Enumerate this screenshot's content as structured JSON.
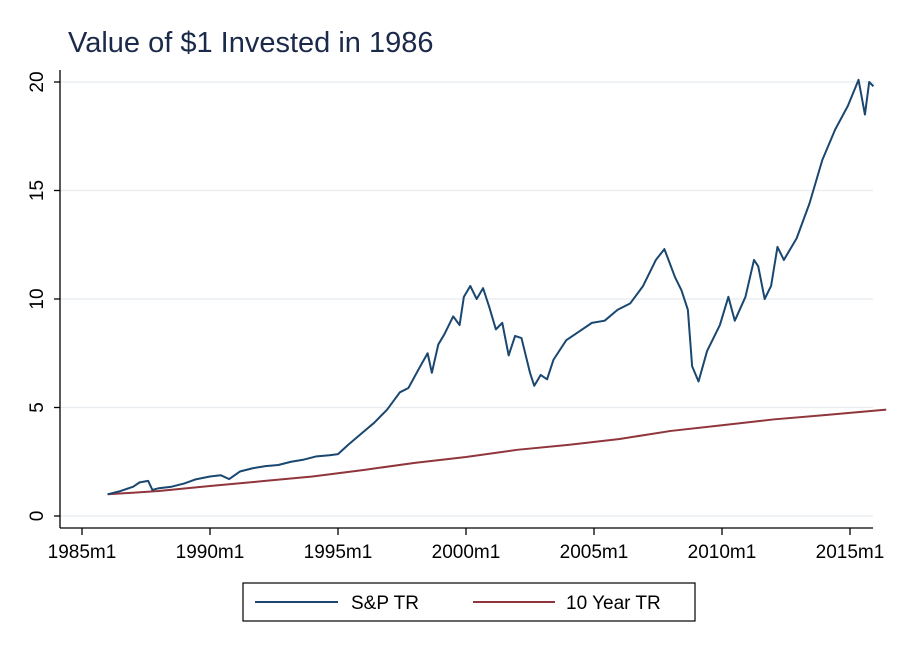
{
  "chart_data": {
    "type": "line",
    "title": "Value of $1 Invested in 1986",
    "xlabel": "",
    "ylabel": "",
    "xlim": [
      "1985m1",
      "2016m12"
    ],
    "ylim": [
      0,
      20
    ],
    "x_ticks": [
      "1985m1",
      "1990m1",
      "1995m1",
      "2000m1",
      "2005m1",
      "2010m1",
      "2015m1"
    ],
    "y_ticks": [
      0,
      5,
      10,
      15,
      20
    ],
    "grid": true,
    "legend_position": "bottom",
    "series": [
      {
        "name": "S&P TR",
        "color": "#1a476f",
        "points": [
          [
            "1986m1",
            1.0
          ],
          [
            "1986m7",
            1.15
          ],
          [
            "1987m1",
            1.35
          ],
          [
            "1987m4",
            1.55
          ],
          [
            "1987m8",
            1.62
          ],
          [
            "1987m10",
            1.2
          ],
          [
            "1988m1",
            1.28
          ],
          [
            "1988m7",
            1.35
          ],
          [
            "1989m1",
            1.5
          ],
          [
            "1989m6",
            1.68
          ],
          [
            "1990m1",
            1.82
          ],
          [
            "1990m6",
            1.88
          ],
          [
            "1990m10",
            1.7
          ],
          [
            "1991m3",
            2.05
          ],
          [
            "1991m9",
            2.2
          ],
          [
            "1992m3",
            2.3
          ],
          [
            "1992m9",
            2.35
          ],
          [
            "1993m3",
            2.5
          ],
          [
            "1993m9",
            2.6
          ],
          [
            "1994m3",
            2.75
          ],
          [
            "1994m9",
            2.8
          ],
          [
            "1995m1",
            2.85
          ],
          [
            "1995m6",
            3.3
          ],
          [
            "1995m12",
            3.8
          ],
          [
            "1996m6",
            4.3
          ],
          [
            "1996m12",
            4.9
          ],
          [
            "1997m6",
            5.7
          ],
          [
            "1997m10",
            5.9
          ],
          [
            "1998m3",
            6.8
          ],
          [
            "1998m7",
            7.5
          ],
          [
            "1998m9",
            6.6
          ],
          [
            "1998m12",
            7.9
          ],
          [
            "1999m3",
            8.4
          ],
          [
            "1999m7",
            9.2
          ],
          [
            "1999m10",
            8.8
          ],
          [
            "1999m12",
            10.1
          ],
          [
            "2000m3",
            10.6
          ],
          [
            "2000m6",
            10.0
          ],
          [
            "2000m9",
            10.5
          ],
          [
            "2000m12",
            9.6
          ],
          [
            "2001m3",
            8.6
          ],
          [
            "2001m6",
            8.9
          ],
          [
            "2001m9",
            7.4
          ],
          [
            "2001m12",
            8.3
          ],
          [
            "2002m3",
            8.2
          ],
          [
            "2002m7",
            6.6
          ],
          [
            "2002m9",
            6.0
          ],
          [
            "2002m12",
            6.5
          ],
          [
            "2003m3",
            6.3
          ],
          [
            "2003m6",
            7.2
          ],
          [
            "2003m12",
            8.1
          ],
          [
            "2004m6",
            8.5
          ],
          [
            "2004m12",
            8.9
          ],
          [
            "2005m6",
            9.0
          ],
          [
            "2005m12",
            9.5
          ],
          [
            "2006m6",
            9.8
          ],
          [
            "2006m12",
            10.6
          ],
          [
            "2007m6",
            11.8
          ],
          [
            "2007m10",
            12.3
          ],
          [
            "2008m3",
            11.0
          ],
          [
            "2008m6",
            10.4
          ],
          [
            "2008m9",
            9.5
          ],
          [
            "2008m11",
            6.9
          ],
          [
            "2009m2",
            6.2
          ],
          [
            "2009m6",
            7.6
          ],
          [
            "2009m12",
            8.8
          ],
          [
            "2010m4",
            10.1
          ],
          [
            "2010m7",
            9.0
          ],
          [
            "2010m12",
            10.1
          ],
          [
            "2011m4",
            11.8
          ],
          [
            "2011m6",
            11.5
          ],
          [
            "2011m9",
            10.0
          ],
          [
            "2011m12",
            10.6
          ],
          [
            "2012m3",
            12.4
          ],
          [
            "2012m6",
            11.8
          ],
          [
            "2012m12",
            12.8
          ],
          [
            "2013m6",
            14.4
          ],
          [
            "2013m12",
            16.4
          ],
          [
            "2014m6",
            17.8
          ],
          [
            "2014m12",
            18.9
          ],
          [
            "2015m5",
            20.1
          ],
          [
            "2015m8",
            18.5
          ],
          [
            "2015m10",
            20.0
          ],
          [
            "2015m12",
            19.8
          ]
        ]
      },
      {
        "name": "10 Year TR",
        "color": "#90353b",
        "points": [
          [
            "1986m1",
            1.0
          ],
          [
            "1988m1",
            1.15
          ],
          [
            "1990m1",
            1.38
          ],
          [
            "1992m1",
            1.6
          ],
          [
            "1994m1",
            1.82
          ],
          [
            "1996m1",
            2.12
          ],
          [
            "1998m1",
            2.45
          ],
          [
            "2000m1",
            2.72
          ],
          [
            "2002m1",
            3.05
          ],
          [
            "2004m1",
            3.28
          ],
          [
            "2006m1",
            3.55
          ],
          [
            "2008m1",
            3.92
          ],
          [
            "2010m1",
            4.18
          ],
          [
            "2012m1",
            4.45
          ],
          [
            "2014m1",
            4.65
          ],
          [
            "2016m6",
            4.9
          ]
        ]
      }
    ]
  }
}
